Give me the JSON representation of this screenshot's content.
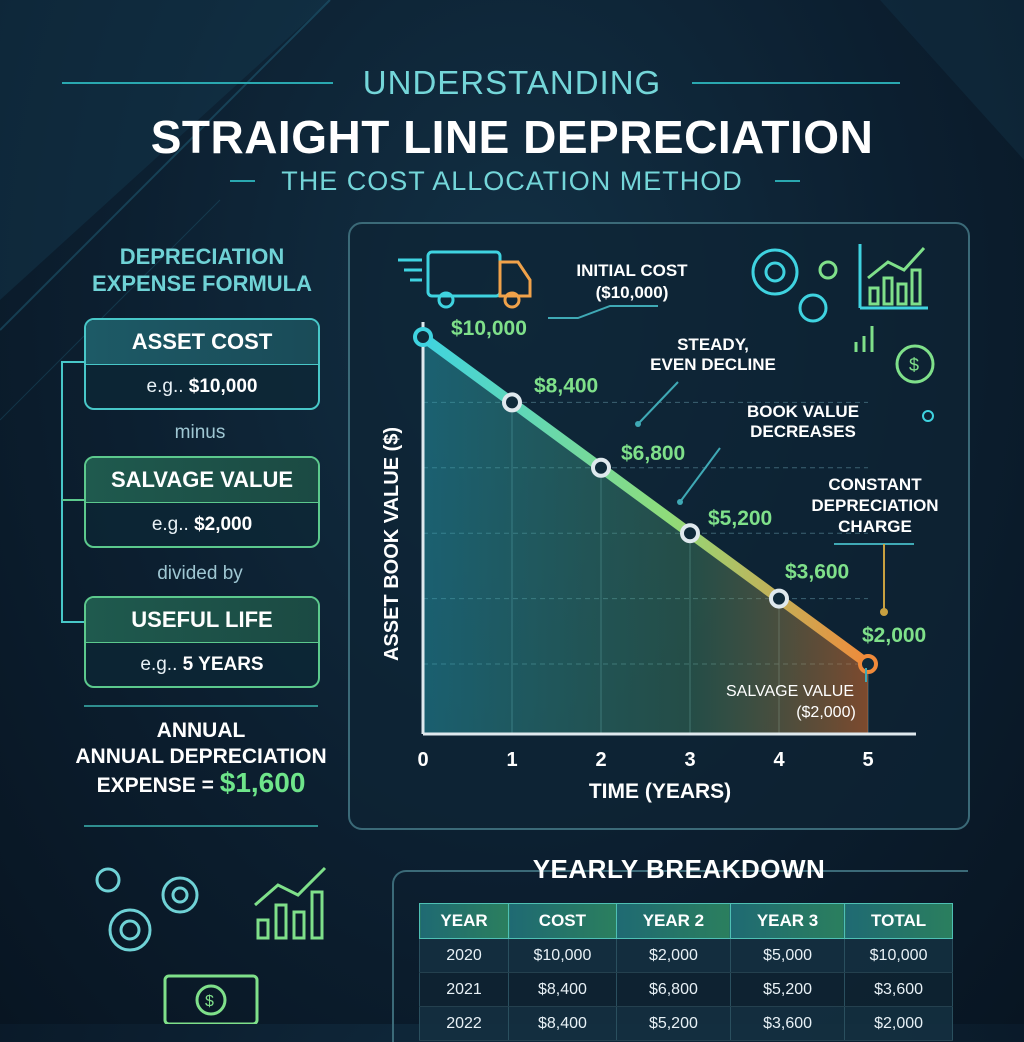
{
  "header": {
    "overline": "UNDERSTANDING",
    "title": "STRAIGHT LINE DEPRECIATION",
    "subtitle": "THE COST ALLOCATION METHOD"
  },
  "formula": {
    "title_line1": "DEPRECIATION",
    "title_line2": "EXPENSE FORMULA",
    "cards": [
      {
        "label": "ASSET COST",
        "example_prefix": "e.g.. ",
        "example_value": "$10,000"
      },
      {
        "label": "SALVAGE VALUE",
        "example_prefix": "e.g.. ",
        "example_value": "$2,000"
      },
      {
        "label": "USEFUL LIFE",
        "example_prefix": "e.g.. ",
        "example_value": "5 YEARS"
      }
    ],
    "operators": [
      "minus",
      "divided by"
    ],
    "result_line1": "ANNUAL",
    "result_line2": "ANNUAL DEPRECIATION",
    "result_prefix": "EXPENSE = ",
    "result_value": "$1,600"
  },
  "chart_data": {
    "type": "line",
    "xlabel": "TIME (YEARS)",
    "ylabel": "ASSET BOOK VALUE ($)",
    "x": [
      0,
      1,
      2,
      3,
      4,
      5
    ],
    "values": [
      10000,
      8400,
      6800,
      5200,
      3600,
      2000
    ],
    "point_labels": [
      "$10,000",
      "$8,400",
      "$6,800",
      "$5,200",
      "$3,600",
      "$2,000"
    ],
    "xlim": [
      0,
      5
    ],
    "grid": true,
    "annotations": {
      "initial_cost_line1": "INITIAL COST",
      "initial_cost_line2": "($10,000)",
      "steady_line1": "STEADY,",
      "steady_line2": "EVEN DECLINE",
      "book_value_line1": "BOOK VALUE",
      "book_value_line2": "DECREASES",
      "constant_line1": "CONSTANT",
      "constant_line2": "DEPRECIATION",
      "constant_line3": "CHARGE",
      "salvage_line1": "SALVAGE VALUE",
      "salvage_line2": "($2,000)"
    },
    "colors": {
      "line_start": "#3fd3e0",
      "line_mid": "#8fdc7a",
      "line_end": "#f08a3a",
      "labels": "#7fe08a"
    }
  },
  "table": {
    "title": "YEARLY BREAKDOWN",
    "columns": [
      "YEAR",
      "COST",
      "YEAR 2",
      "YEAR 3",
      "TOTAL"
    ],
    "rows": [
      [
        "2020",
        "$10,000",
        "$2,000",
        "$5,000",
        "$10,000"
      ],
      [
        "2021",
        "$8,400",
        "$6,800",
        "$5,200",
        "$3,600"
      ],
      [
        "2022",
        "$8,400",
        "$5,200",
        "$3,600",
        "$2,000"
      ]
    ]
  },
  "icons": [
    "truck-icon",
    "gear-icon",
    "bar-chart-icon",
    "dollar-coin-icon",
    "money-bill-icon"
  ]
}
